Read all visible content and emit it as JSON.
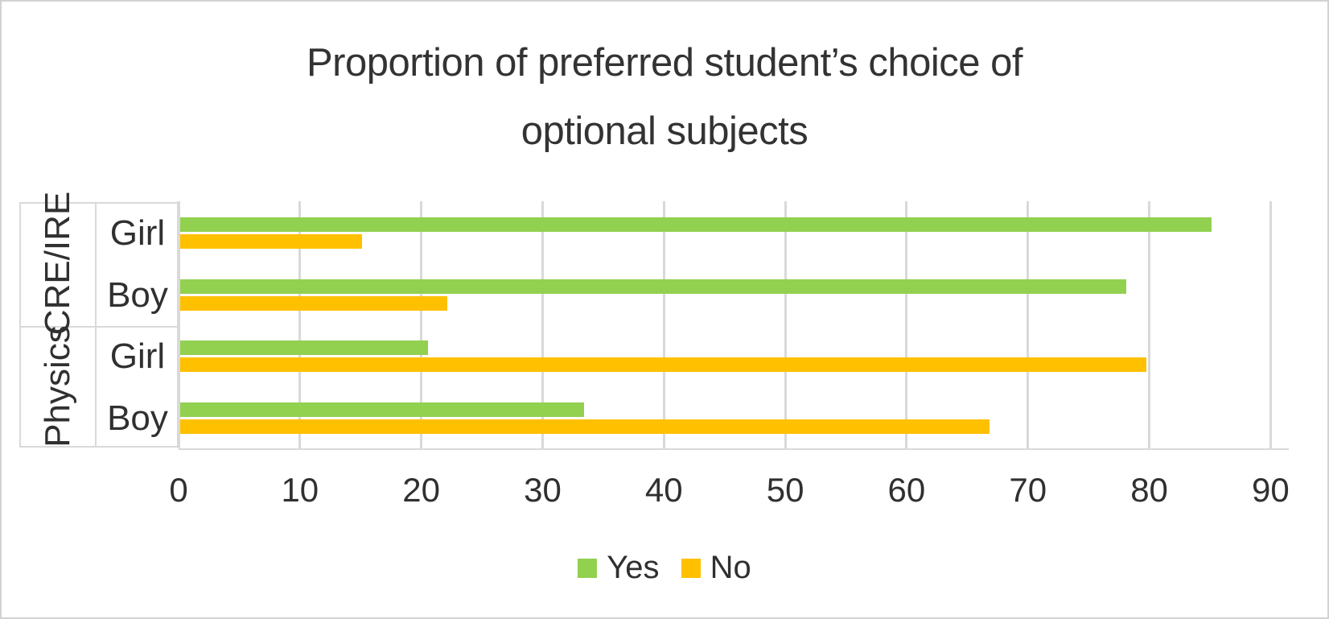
{
  "chart_data": {
    "type": "bar",
    "orientation": "horizontal",
    "title": "Proportion of preferred student’s choice of optional subjects",
    "title_lines": [
      "Proportion of preferred student’s choice of",
      "optional subjects"
    ],
    "categories": [
      {
        "subject": "CRE/IRE",
        "gender": "Girl"
      },
      {
        "subject": "CRE/IRE",
        "gender": "Boy"
      },
      {
        "subject": "Physics",
        "gender": "Girl"
      },
      {
        "subject": "Physics",
        "gender": "Boy"
      }
    ],
    "subject_groups": [
      {
        "label": "CRE/IRE",
        "rows": [
          "Girl",
          "Boy"
        ]
      },
      {
        "label": "Physics",
        "rows": [
          "Girl",
          "Boy"
        ]
      }
    ],
    "series": [
      {
        "name": "Yes",
        "color": "#92D050",
        "values": [
          85,
          78,
          20.4,
          33.3
        ]
      },
      {
        "name": "No",
        "color": "#FFC000",
        "values": [
          15,
          22,
          79.6,
          66.7
        ]
      }
    ],
    "x_axis": {
      "min": 0,
      "max": 91.5,
      "ticks": [
        0,
        10,
        20,
        30,
        40,
        50,
        60,
        70,
        80,
        90
      ]
    },
    "legend": {
      "position": "bottom",
      "entries": [
        "Yes",
        "No"
      ]
    },
    "grid": {
      "vertical": true,
      "color": "#D9D9D9"
    }
  },
  "colors": {
    "yes": "#92D050",
    "no": "#FFC000",
    "grid": "#D9D9D9",
    "text": "#303030",
    "frame": "#D2D2D2"
  }
}
